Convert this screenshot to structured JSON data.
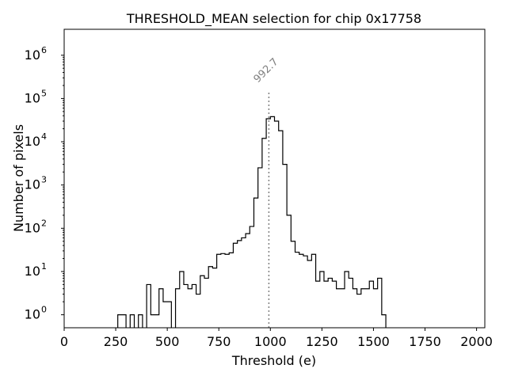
{
  "chart_data": {
    "type": "histogram",
    "title": "THRESHOLD_MEAN selection for chip 0x17758",
    "xlabel": "Threshold (e)",
    "ylabel": "Number of pixels",
    "xlim": [
      0,
      2040
    ],
    "ylim_log10": [
      -0.3,
      6.6
    ],
    "yscale": "log",
    "x_ticks": [
      0,
      250,
      500,
      750,
      1000,
      1250,
      1500,
      1750,
      2000
    ],
    "x_tick_labels": [
      "0",
      "250",
      "500",
      "750",
      "1000",
      "1250",
      "1500",
      "1750",
      "2000"
    ],
    "y_tick_exponents": [
      0,
      1,
      2,
      3,
      4,
      5,
      6
    ],
    "y_tick_labels": [
      "10",
      "10",
      "10",
      "10",
      "10",
      "10",
      "10"
    ],
    "bin_width": 20,
    "bins_start": [
      240,
      260,
      280,
      300,
      320,
      340,
      360,
      380,
      400,
      420,
      440,
      460,
      480,
      500,
      520,
      540,
      560,
      580,
      600,
      620,
      640,
      660,
      680,
      700,
      720,
      740,
      760,
      780,
      800,
      820,
      840,
      860,
      880,
      900,
      920,
      940,
      960,
      980,
      1000,
      1020,
      1040,
      1060,
      1080,
      1100,
      1120,
      1140,
      1160,
      1180,
      1200,
      1220,
      1240,
      1260,
      1280,
      1300,
      1320,
      1340,
      1360,
      1380,
      1400,
      1420,
      1440,
      1460,
      1480,
      1500,
      1520,
      1540,
      1560,
      1580
    ],
    "counts": [
      0,
      1,
      1,
      0,
      1,
      0,
      1,
      0,
      5,
      1,
      1,
      4,
      2,
      2,
      0,
      4,
      10,
      5,
      4,
      5,
      3,
      8,
      7,
      13,
      12,
      25,
      26,
      25,
      27,
      45,
      52,
      60,
      75,
      110,
      500,
      2500,
      12000,
      34000,
      38000,
      30000,
      18000,
      3000,
      200,
      50,
      28,
      25,
      23,
      18,
      25,
      6,
      10,
      6,
      7,
      6,
      4,
      4,
      10,
      7,
      4,
      3,
      4,
      4,
      6,
      4,
      7,
      1,
      0,
      0
    ],
    "vline": {
      "x": 992.7,
      "label": "992.7",
      "color": "#808080",
      "style": "dotted"
    },
    "line_color": "#000000"
  }
}
